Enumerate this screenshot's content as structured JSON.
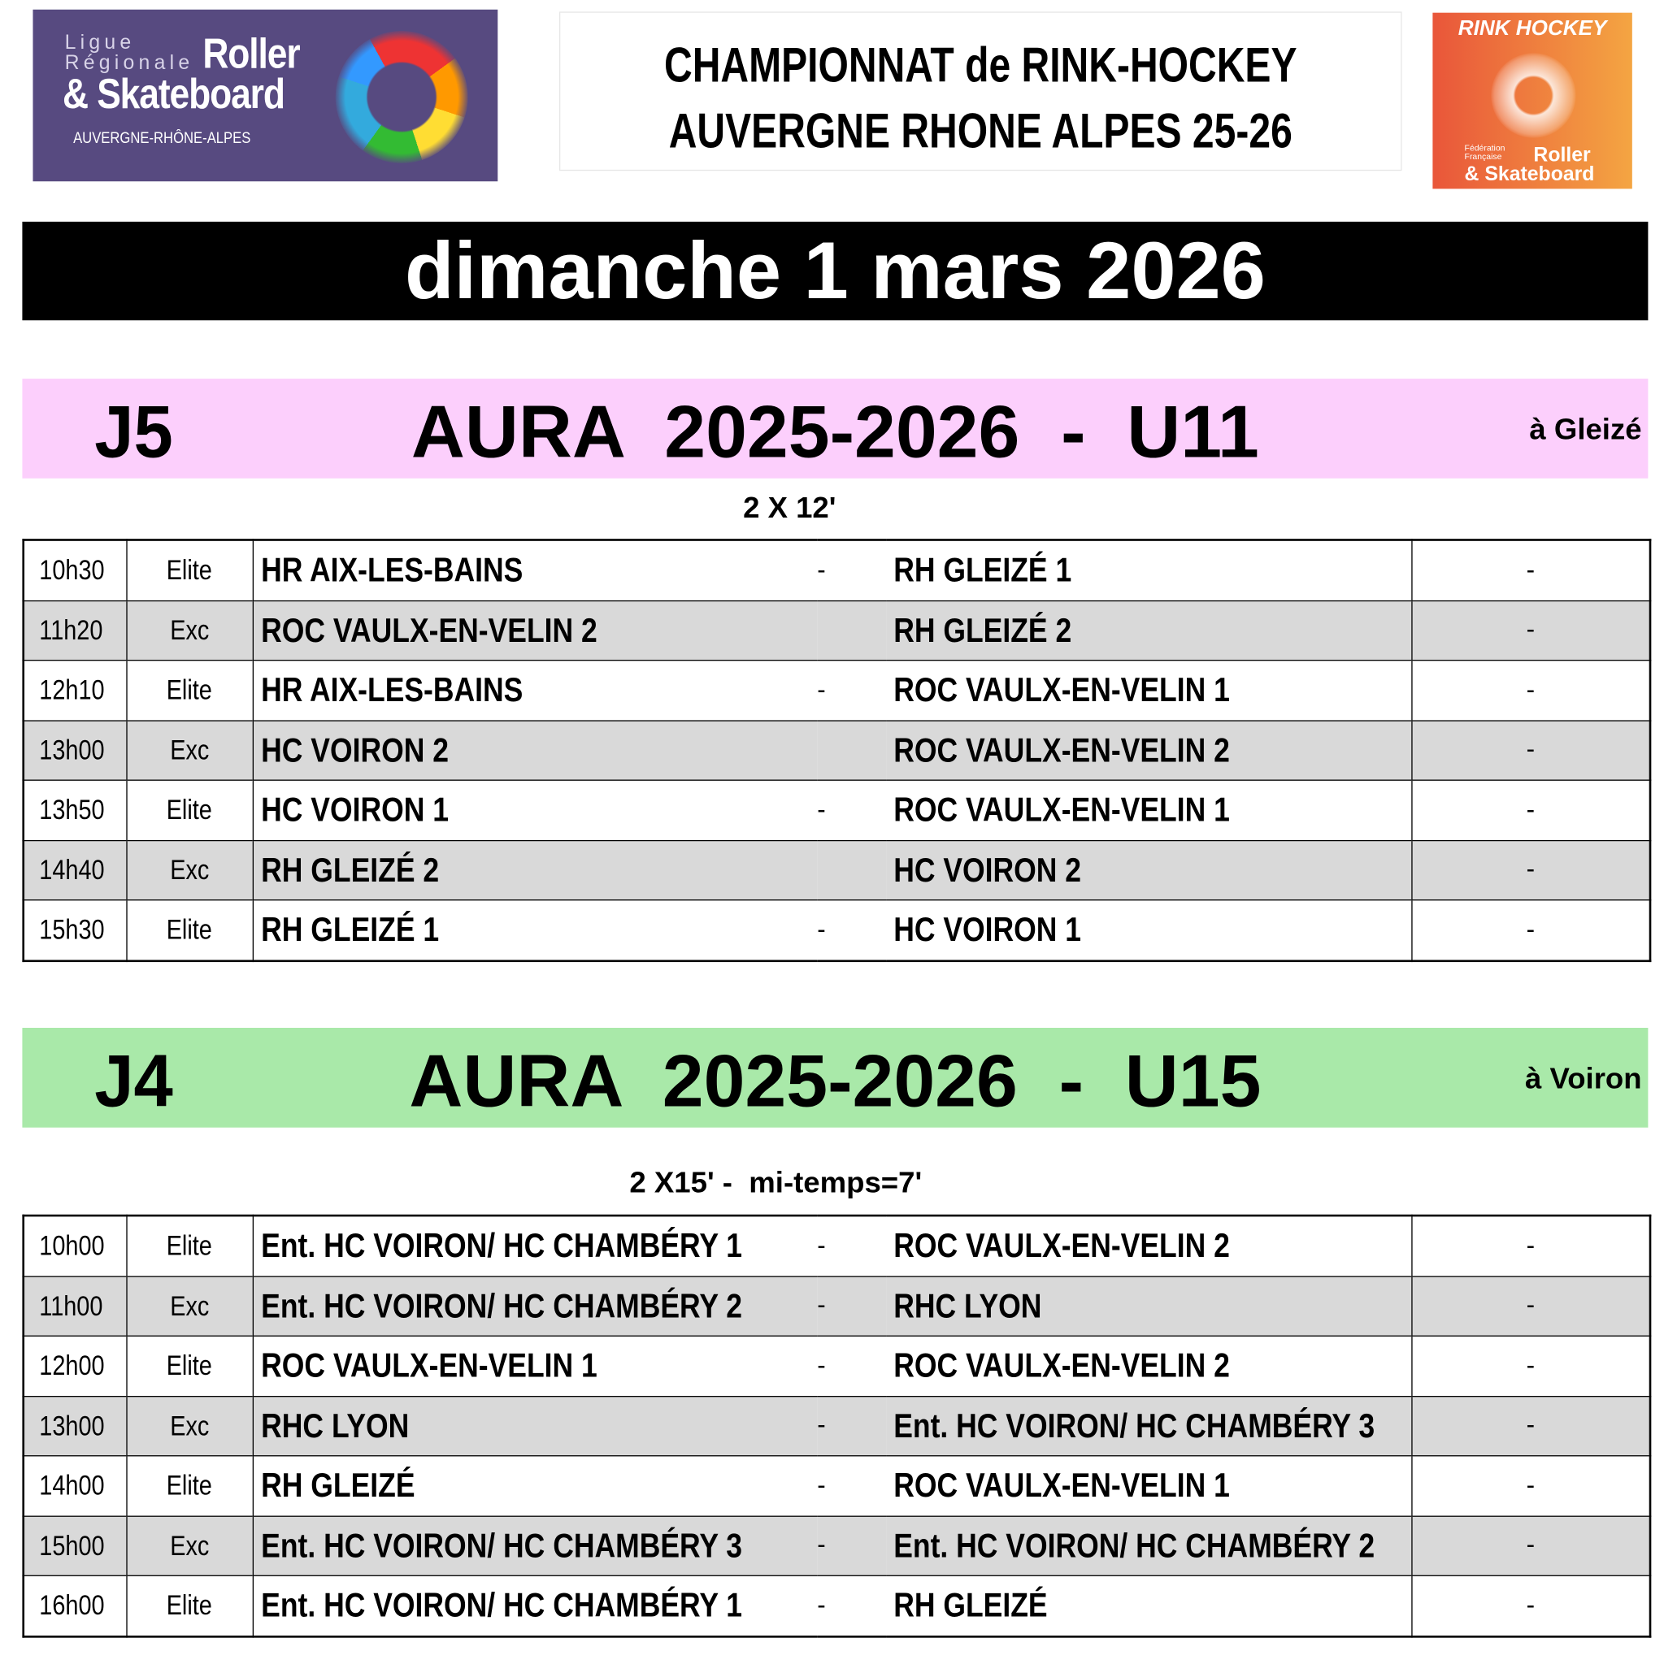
{
  "header": {
    "logo_left": {
      "line1": "Ligue",
      "line2": "Régionale",
      "brand1": "Roller",
      "brand2": "& Skateboard",
      "region": "AUVERGNE-RHÔNE-ALPES"
    },
    "title_line1": "CHAMPIONNAT de RINK-HOCKEY",
    "title_line2": "AUVERGNE RHONE ALPES  25-26",
    "logo_right": {
      "top": "RINK HOCKEY",
      "fed": "Fédération Française",
      "brand1": "Roller",
      "brand2": "& Skateboard"
    }
  },
  "date_banner": "dimanche 1 mars 2026",
  "sections": [
    {
      "day": "J5",
      "title": "AURA  2025-2026  -  U11",
      "location": "à Gleizé",
      "format": "2 X 12'",
      "color": "#fccffc",
      "matches": [
        {
          "time": "10h30",
          "cat": "Elite",
          "home": "HR AIX-LES-BAINS",
          "sep": "-",
          "away": "RH GLEIZÉ 1",
          "score": "-"
        },
        {
          "time": "11h20",
          "cat": "Exc",
          "home": "ROC VAULX-EN-VELIN 2",
          "sep": "",
          "away": "RH GLEIZÉ 2",
          "score": "-"
        },
        {
          "time": "12h10",
          "cat": "Elite",
          "home": "HR AIX-LES-BAINS",
          "sep": "-",
          "away": "ROC VAULX-EN-VELIN 1",
          "score": "-"
        },
        {
          "time": "13h00",
          "cat": "Exc",
          "home": "HC VOIRON 2",
          "sep": "",
          "away": "ROC VAULX-EN-VELIN 2",
          "score": "-"
        },
        {
          "time": "13h50",
          "cat": "Elite",
          "home": "HC VOIRON 1",
          "sep": "-",
          "away": "ROC VAULX-EN-VELIN 1",
          "score": "-"
        },
        {
          "time": "14h40",
          "cat": "Exc",
          "home": "RH GLEIZÉ 2",
          "sep": "",
          "away": "HC VOIRON 2",
          "score": "-"
        },
        {
          "time": "15h30",
          "cat": "Elite",
          "home": "RH GLEIZÉ 1",
          "sep": "-",
          "away": "HC VOIRON 1",
          "score": "-"
        }
      ]
    },
    {
      "day": "J4",
      "title": "AURA  2025-2026  -  U15",
      "location": "à Voiron",
      "format": "2 X15' -  mi-temps=7'",
      "color": "#a9e9a9",
      "matches": [
        {
          "time": "10h00",
          "cat": "Elite",
          "home": "Ent. HC VOIRON/ HC CHAMBÉRY 1",
          "sep": "-",
          "away": "ROC VAULX-EN-VELIN 2",
          "score": "-"
        },
        {
          "time": "11h00",
          "cat": "Exc",
          "home": "Ent. HC VOIRON/ HC CHAMBÉRY 2",
          "sep": "-",
          "away": "RHC LYON",
          "score": "-"
        },
        {
          "time": "12h00",
          "cat": "Elite",
          "home": "ROC VAULX-EN-VELIN 1",
          "sep": "-",
          "away": "ROC VAULX-EN-VELIN 2",
          "score": "-"
        },
        {
          "time": "13h00",
          "cat": "Exc",
          "home": "RHC LYON",
          "sep": "-",
          "away": "Ent. HC VOIRON/ HC CHAMBÉRY 3",
          "score": "-"
        },
        {
          "time": "14h00",
          "cat": "Elite",
          "home": "RH GLEIZÉ",
          "sep": "-",
          "away": "ROC VAULX-EN-VELIN 1",
          "score": "-"
        },
        {
          "time": "15h00",
          "cat": "Exc",
          "home": "Ent. HC VOIRON/ HC CHAMBÉRY 3",
          "sep": "-",
          "away": "Ent. HC VOIRON/ HC CHAMBÉRY 2",
          "score": "-"
        },
        {
          "time": "16h00",
          "cat": "Elite",
          "home": "Ent. HC VOIRON/ HC CHAMBÉRY 1",
          "sep": "-",
          "away": "RH GLEIZÉ",
          "score": "-"
        }
      ]
    }
  ]
}
